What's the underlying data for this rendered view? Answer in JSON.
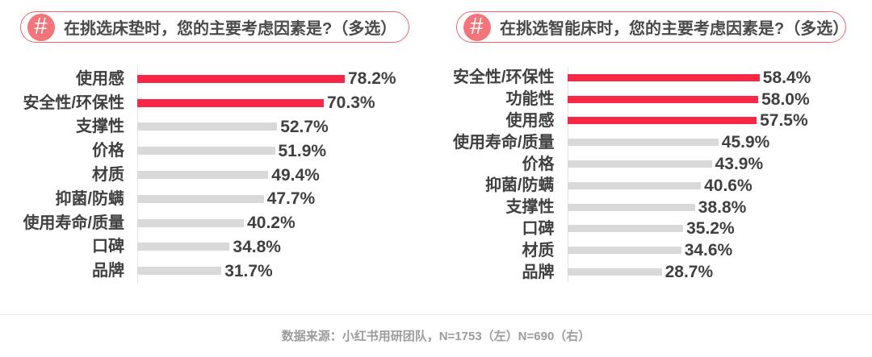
{
  "page": {
    "background": "#ffffff",
    "hash_symbol": "#",
    "colors": {
      "highlight_bar": "#f92747",
      "default_bar": "#d9d9d9",
      "pill_border": "#f2656d",
      "hash_circle_fill": "#f2757c",
      "title_text": "#4a4a4a",
      "label_text": "#404040",
      "axis_line": "#e4e4e4",
      "divider_line": "#e7e7e7",
      "footer_text": "#9c9c9c"
    },
    "footer": {
      "text": "数据来源：小红书用研团队，N=1753（左）N=690（右）"
    }
  },
  "chart_data": [
    {
      "type": "bar",
      "orientation": "horizontal",
      "title": "在挑选床垫时，您的主要考虑因素是?（多选）",
      "categories": [
        "使用感",
        "安全性/环保性",
        "支撑性",
        "价格",
        "材质",
        "抑菌/防螨",
        "使用寿命/质量",
        "口碑",
        "品牌"
      ],
      "values": [
        78.2,
        70.3,
        52.7,
        51.9,
        49.4,
        47.7,
        40.2,
        34.8,
        31.7
      ],
      "value_labels": [
        "78.2%",
        "70.3%",
        "52.7%",
        "51.9%",
        "49.4%",
        "47.7%",
        "40.2%",
        "34.8%",
        "31.7%"
      ],
      "unit": "%",
      "highlight_indices": [
        0,
        1
      ],
      "xlim": [
        0,
        100
      ],
      "grid": false,
      "legend": false,
      "sample_note": "N=1753"
    },
    {
      "type": "bar",
      "orientation": "horizontal",
      "title": "在挑选智能床时，您的主要考虑因素是?（多选）",
      "categories": [
        "安全性/环保性",
        "功能性",
        "使用感",
        "使用寿命/质量",
        "价格",
        "抑菌/防螨",
        "支撑性",
        "口碑",
        "材质",
        "品牌"
      ],
      "values": [
        58.4,
        58.0,
        57.5,
        45.9,
        43.9,
        40.6,
        38.8,
        35.2,
        34.6,
        28.7
      ],
      "value_labels": [
        "58.4%",
        "58.0%",
        "57.5%",
        "45.9%",
        "43.9%",
        "40.6%",
        "38.8%",
        "35.2%",
        "34.6%",
        "28.7%"
      ],
      "unit": "%",
      "highlight_indices": [
        0,
        1,
        2
      ],
      "xlim": [
        0,
        100
      ],
      "grid": false,
      "legend": false,
      "sample_note": "N=690"
    }
  ]
}
